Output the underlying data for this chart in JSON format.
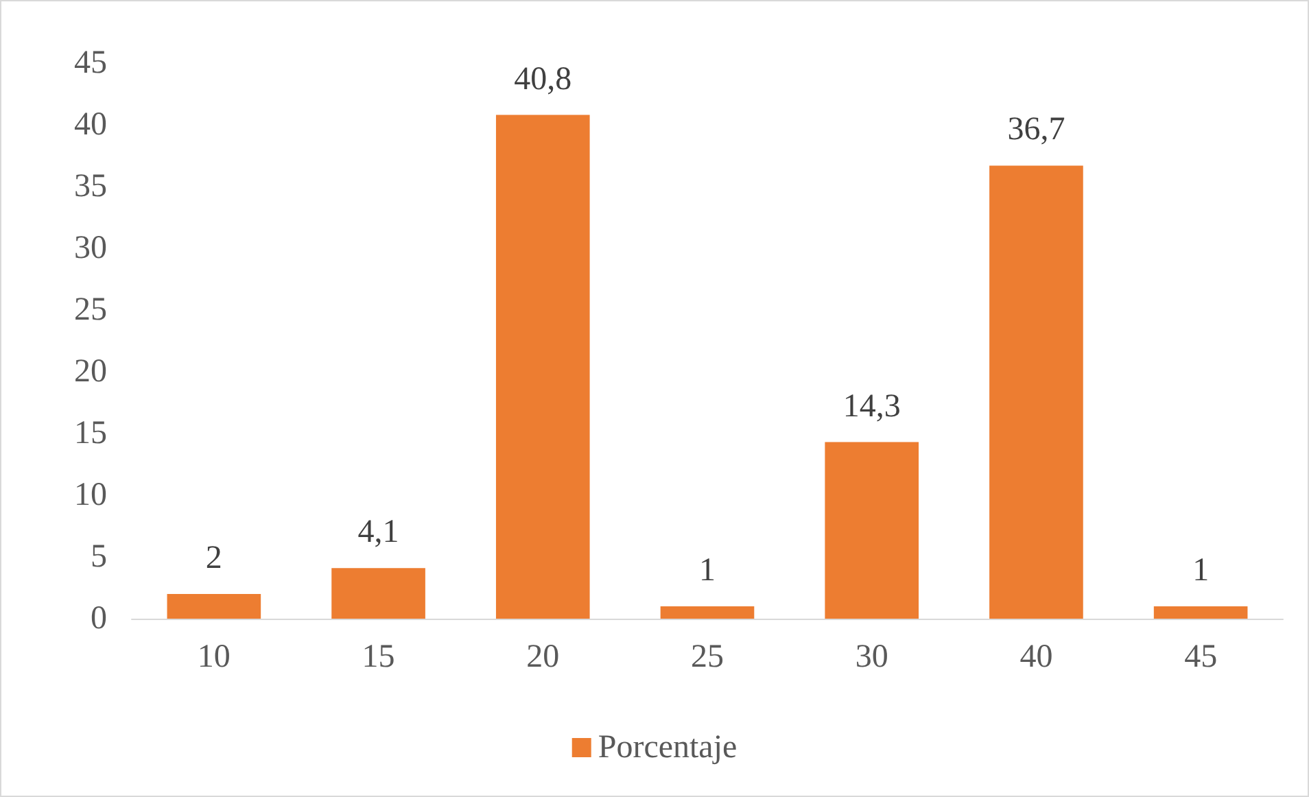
{
  "chart_data": {
    "type": "bar",
    "categories": [
      "10",
      "15",
      "20",
      "25",
      "30",
      "40",
      "45"
    ],
    "series": [
      {
        "name": "Porcentaje",
        "color": "#ed7d31",
        "values": [
          2,
          4.1,
          40.8,
          1,
          14.3,
          36.7,
          1
        ],
        "value_labels": [
          "2",
          "4,1",
          "40,8",
          "1",
          "14,3",
          "36,7",
          "1"
        ]
      }
    ],
    "ylim": [
      0,
      45
    ],
    "yticks": [
      0,
      5,
      10,
      15,
      20,
      25,
      30,
      35,
      40,
      45
    ],
    "grid": false,
    "legend": "bottom"
  }
}
